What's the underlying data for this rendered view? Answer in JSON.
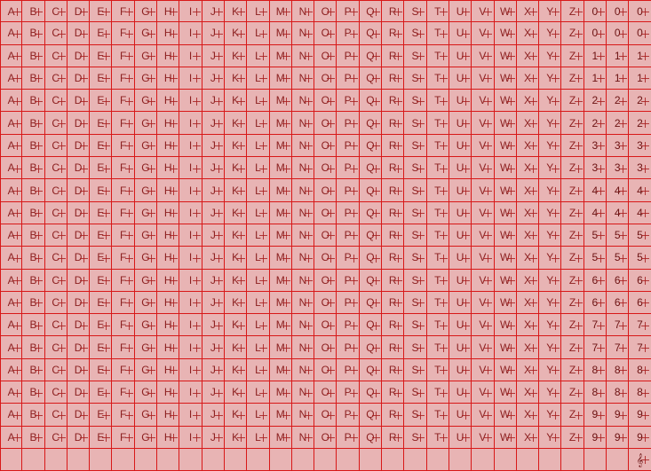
{
  "grid": {
    "rows": [
      [
        "A",
        "B",
        "C",
        "D",
        "E",
        "F",
        "G",
        "H",
        "I",
        "J",
        "K",
        "L",
        "M",
        "N",
        "O",
        "P",
        "Q",
        "R",
        "S",
        "T",
        "U",
        "V",
        "W",
        "X",
        "Y",
        "Z",
        "0",
        "0",
        "0"
      ],
      [
        "A",
        "B",
        "C",
        "D",
        "E",
        "F",
        "G",
        "H",
        "I",
        "J",
        "K",
        "L",
        "M",
        "N",
        "O",
        "P",
        "Q",
        "R",
        "S",
        "T",
        "U",
        "V",
        "W",
        "X",
        "Y",
        "Z",
        "0",
        "0",
        "0"
      ],
      [
        "A",
        "B",
        "C",
        "D",
        "E",
        "F",
        "G",
        "H",
        "I",
        "J",
        "K",
        "L",
        "M",
        "N",
        "O",
        "P",
        "Q",
        "R",
        "S",
        "T",
        "U",
        "V",
        "W",
        "X",
        "Y",
        "Z",
        "1",
        "1",
        "1"
      ],
      [
        "A",
        "B",
        "C",
        "D",
        "E",
        "F",
        "G",
        "H",
        "I",
        "J",
        "K",
        "L",
        "M",
        "N",
        "O",
        "P",
        "Q",
        "R",
        "S",
        "T",
        "U",
        "V",
        "W",
        "X",
        "Y",
        "Z",
        "1",
        "1",
        "1"
      ],
      [
        "A",
        "B",
        "C",
        "D",
        "E",
        "F",
        "G",
        "H",
        "I",
        "J",
        "K",
        "L",
        "M",
        "N",
        "O",
        "P",
        "Q",
        "R",
        "S",
        "T",
        "U",
        "V",
        "W",
        "X",
        "Y",
        "Z",
        "2",
        "2",
        "2"
      ],
      [
        "A",
        "B",
        "C",
        "D",
        "E",
        "F",
        "G",
        "H",
        "I",
        "J",
        "K",
        "L",
        "M",
        "N",
        "O",
        "P",
        "Q",
        "R",
        "S",
        "T",
        "U",
        "V",
        "W",
        "X",
        "Y",
        "Z",
        "2",
        "2",
        "2"
      ],
      [
        "A",
        "B",
        "C",
        "D",
        "E",
        "F",
        "G",
        "H",
        "I",
        "J",
        "K",
        "L",
        "M",
        "N",
        "O",
        "P",
        "Q",
        "R",
        "S",
        "T",
        "U",
        "V",
        "W",
        "X",
        "Y",
        "Z",
        "3",
        "3",
        "3"
      ],
      [
        "A",
        "B",
        "C",
        "D",
        "E",
        "F",
        "G",
        "H",
        "I",
        "J",
        "K",
        "L",
        "M",
        "N",
        "O",
        "P",
        "Q",
        "R",
        "S",
        "T",
        "U",
        "V",
        "W",
        "X",
        "Y",
        "Z",
        "3",
        "3",
        "3"
      ],
      [
        "A",
        "B",
        "C",
        "D",
        "E",
        "F",
        "G",
        "H",
        "I",
        "J",
        "K",
        "L",
        "M",
        "N",
        "O",
        "P",
        "Q",
        "R",
        "S",
        "T",
        "U",
        "V",
        "W",
        "X",
        "Y",
        "Z",
        "4",
        "4",
        "4"
      ],
      [
        "A",
        "B",
        "C",
        "D",
        "E",
        "F",
        "G",
        "H",
        "I",
        "J",
        "K",
        "L",
        "M",
        "N",
        "O",
        "P",
        "Q",
        "R",
        "S",
        "T",
        "U",
        "V",
        "W",
        "X",
        "Y",
        "Z",
        "4",
        "4",
        "4"
      ],
      [
        "A",
        "B",
        "C",
        "D",
        "E",
        "F",
        "G",
        "H",
        "I",
        "J",
        "K",
        "L",
        "M",
        "N",
        "O",
        "P",
        "Q",
        "R",
        "S",
        "T",
        "U",
        "V",
        "W",
        "X",
        "Y",
        "Z",
        "5",
        "5",
        "5"
      ],
      [
        "A",
        "B",
        "C",
        "D",
        "E",
        "F",
        "G",
        "H",
        "I",
        "J",
        "K",
        "L",
        "M",
        "N",
        "O",
        "P",
        "Q",
        "R",
        "S",
        "T",
        "U",
        "V",
        "W",
        "X",
        "Y",
        "Z",
        "5",
        "5",
        "5"
      ],
      [
        "A",
        "B",
        "C",
        "D",
        "E",
        "F",
        "G",
        "H",
        "I",
        "J",
        "K",
        "L",
        "M",
        "N",
        "O",
        "P",
        "Q",
        "R",
        "S",
        "T",
        "U",
        "V",
        "W",
        "X",
        "Y",
        "Z",
        "6",
        "6",
        "6"
      ],
      [
        "A",
        "B",
        "C",
        "D",
        "E",
        "F",
        "G",
        "H",
        "I",
        "J",
        "K",
        "L",
        "M",
        "N",
        "O",
        "P",
        "Q",
        "R",
        "S",
        "T",
        "U",
        "V",
        "W",
        "X",
        "Y",
        "Z",
        "6",
        "6",
        "6"
      ],
      [
        "A",
        "B",
        "C",
        "D",
        "E",
        "F",
        "G",
        "H",
        "I",
        "J",
        "K",
        "L",
        "M",
        "N",
        "O",
        "P",
        "Q",
        "R",
        "S",
        "T",
        "U",
        "V",
        "W",
        "X",
        "Y",
        "Z",
        "7",
        "7",
        "7"
      ],
      [
        "A",
        "B",
        "C",
        "D",
        "E",
        "F",
        "G",
        "H",
        "I",
        "J",
        "K",
        "L",
        "M",
        "N",
        "O",
        "P",
        "Q",
        "R",
        "S",
        "T",
        "U",
        "V",
        "W",
        "X",
        "Y",
        "Z",
        "7",
        "7",
        "7"
      ],
      [
        "A",
        "B",
        "C",
        "D",
        "E",
        "F",
        "G",
        "H",
        "I",
        "J",
        "K",
        "L",
        "M",
        "N",
        "O",
        "P",
        "Q",
        "R",
        "S",
        "T",
        "U",
        "V",
        "W",
        "X",
        "Y",
        "Z",
        "8",
        "8",
        "8"
      ],
      [
        "A",
        "B",
        "C",
        "D",
        "E",
        "F",
        "G",
        "H",
        "I",
        "J",
        "K",
        "L",
        "M",
        "N",
        "O",
        "P",
        "Q",
        "R",
        "S",
        "T",
        "U",
        "V",
        "W",
        "X",
        "Y",
        "Z",
        "8",
        "8",
        "8"
      ],
      [
        "A",
        "B",
        "C",
        "D",
        "E",
        "F",
        "G",
        "H",
        "I",
        "J",
        "K",
        "L",
        "M",
        "N",
        "O",
        "P",
        "Q",
        "R",
        "S",
        "T",
        "U",
        "V",
        "W",
        "X",
        "Y",
        "Z",
        "9",
        "9",
        "9"
      ],
      [
        "A",
        "B",
        "C",
        "D",
        "E",
        "F",
        "G",
        "H",
        "I",
        "J",
        "K",
        "L",
        "M",
        "N",
        "O",
        "P",
        "Q",
        "R",
        "S",
        "T",
        "U",
        "V",
        "W",
        "X",
        "Y",
        "Z",
        "9",
        "9",
        "9"
      ],
      [
        "",
        "",
        "",
        "",
        "",
        "",
        "",
        "",
        "",
        "",
        "",
        "",
        "",
        "",
        "",
        "",
        "",
        "",
        "",
        "",
        "",
        "",
        "",
        "",
        "",
        "",
        "",
        "",
        "𝄞"
      ]
    ]
  },
  "colors": {
    "background": "#e8b4b4",
    "grid_line": "#d81818",
    "glyph": "#8c2020"
  }
}
